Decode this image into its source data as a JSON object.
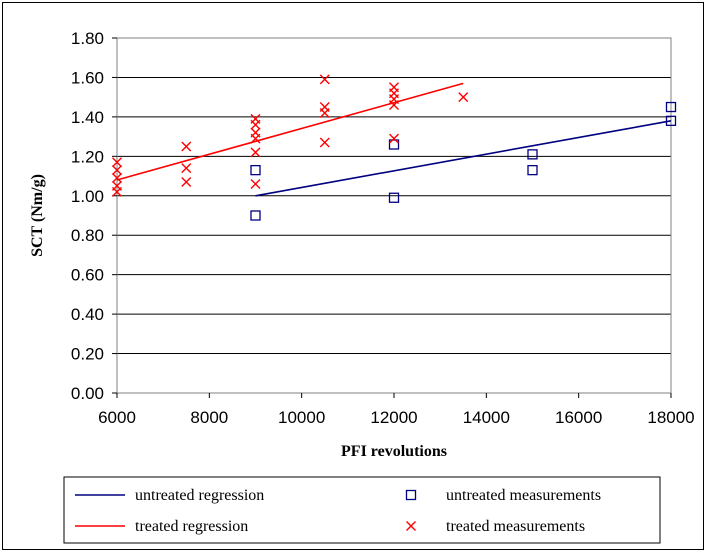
{
  "chart_data": {
    "type": "scatter",
    "title": "",
    "xlabel": "PFI revolutions",
    "ylabel": "SCT (Nm/g)",
    "xlim": [
      6000,
      18000
    ],
    "ylim": [
      0.0,
      1.8
    ],
    "x_ticks": [
      "6000",
      "8000",
      "10000",
      "12000",
      "14000",
      "16000",
      "18000"
    ],
    "y_ticks": [
      "0.00",
      "0.20",
      "0.40",
      "0.60",
      "0.80",
      "1.00",
      "1.20",
      "1.40",
      "1.60",
      "1.80"
    ],
    "grid": "horizontal",
    "legend_position": "bottom",
    "series": [
      {
        "name": "untreated regression",
        "kind": "line",
        "color": "#000080",
        "points": [
          [
            9000,
            1.0
          ],
          [
            18000,
            1.38
          ]
        ]
      },
      {
        "name": "treated regression",
        "kind": "line",
        "color": "#ff0000",
        "points": [
          [
            6000,
            1.08
          ],
          [
            13500,
            1.57
          ]
        ]
      },
      {
        "name": "untreated measurements",
        "kind": "marker",
        "marker": "square",
        "color": "#000080",
        "points": [
          [
            9000,
            1.13
          ],
          [
            9000,
            0.9
          ],
          [
            12000,
            1.26
          ],
          [
            12000,
            0.99
          ],
          [
            15000,
            1.21
          ],
          [
            15000,
            1.13
          ],
          [
            18000,
            1.45
          ],
          [
            18000,
            1.38
          ]
        ]
      },
      {
        "name": "treated measurements",
        "kind": "marker",
        "marker": "x",
        "color": "#ff0000",
        "points": [
          [
            6000,
            1.17
          ],
          [
            6000,
            1.13
          ],
          [
            6000,
            1.09
          ],
          [
            6000,
            1.05
          ],
          [
            6000,
            1.02
          ],
          [
            7500,
            1.25
          ],
          [
            7500,
            1.14
          ],
          [
            7500,
            1.07
          ],
          [
            9000,
            1.39
          ],
          [
            9000,
            1.36
          ],
          [
            9000,
            1.32
          ],
          [
            9000,
            1.29
          ],
          [
            9000,
            1.22
          ],
          [
            9000,
            1.06
          ],
          [
            10500,
            1.59
          ],
          [
            10500,
            1.45
          ],
          [
            10500,
            1.42
          ],
          [
            10500,
            1.27
          ],
          [
            12000,
            1.55
          ],
          [
            12000,
            1.52
          ],
          [
            12000,
            1.49
          ],
          [
            12000,
            1.46
          ],
          [
            12000,
            1.29
          ],
          [
            13500,
            1.5
          ]
        ]
      }
    ]
  }
}
